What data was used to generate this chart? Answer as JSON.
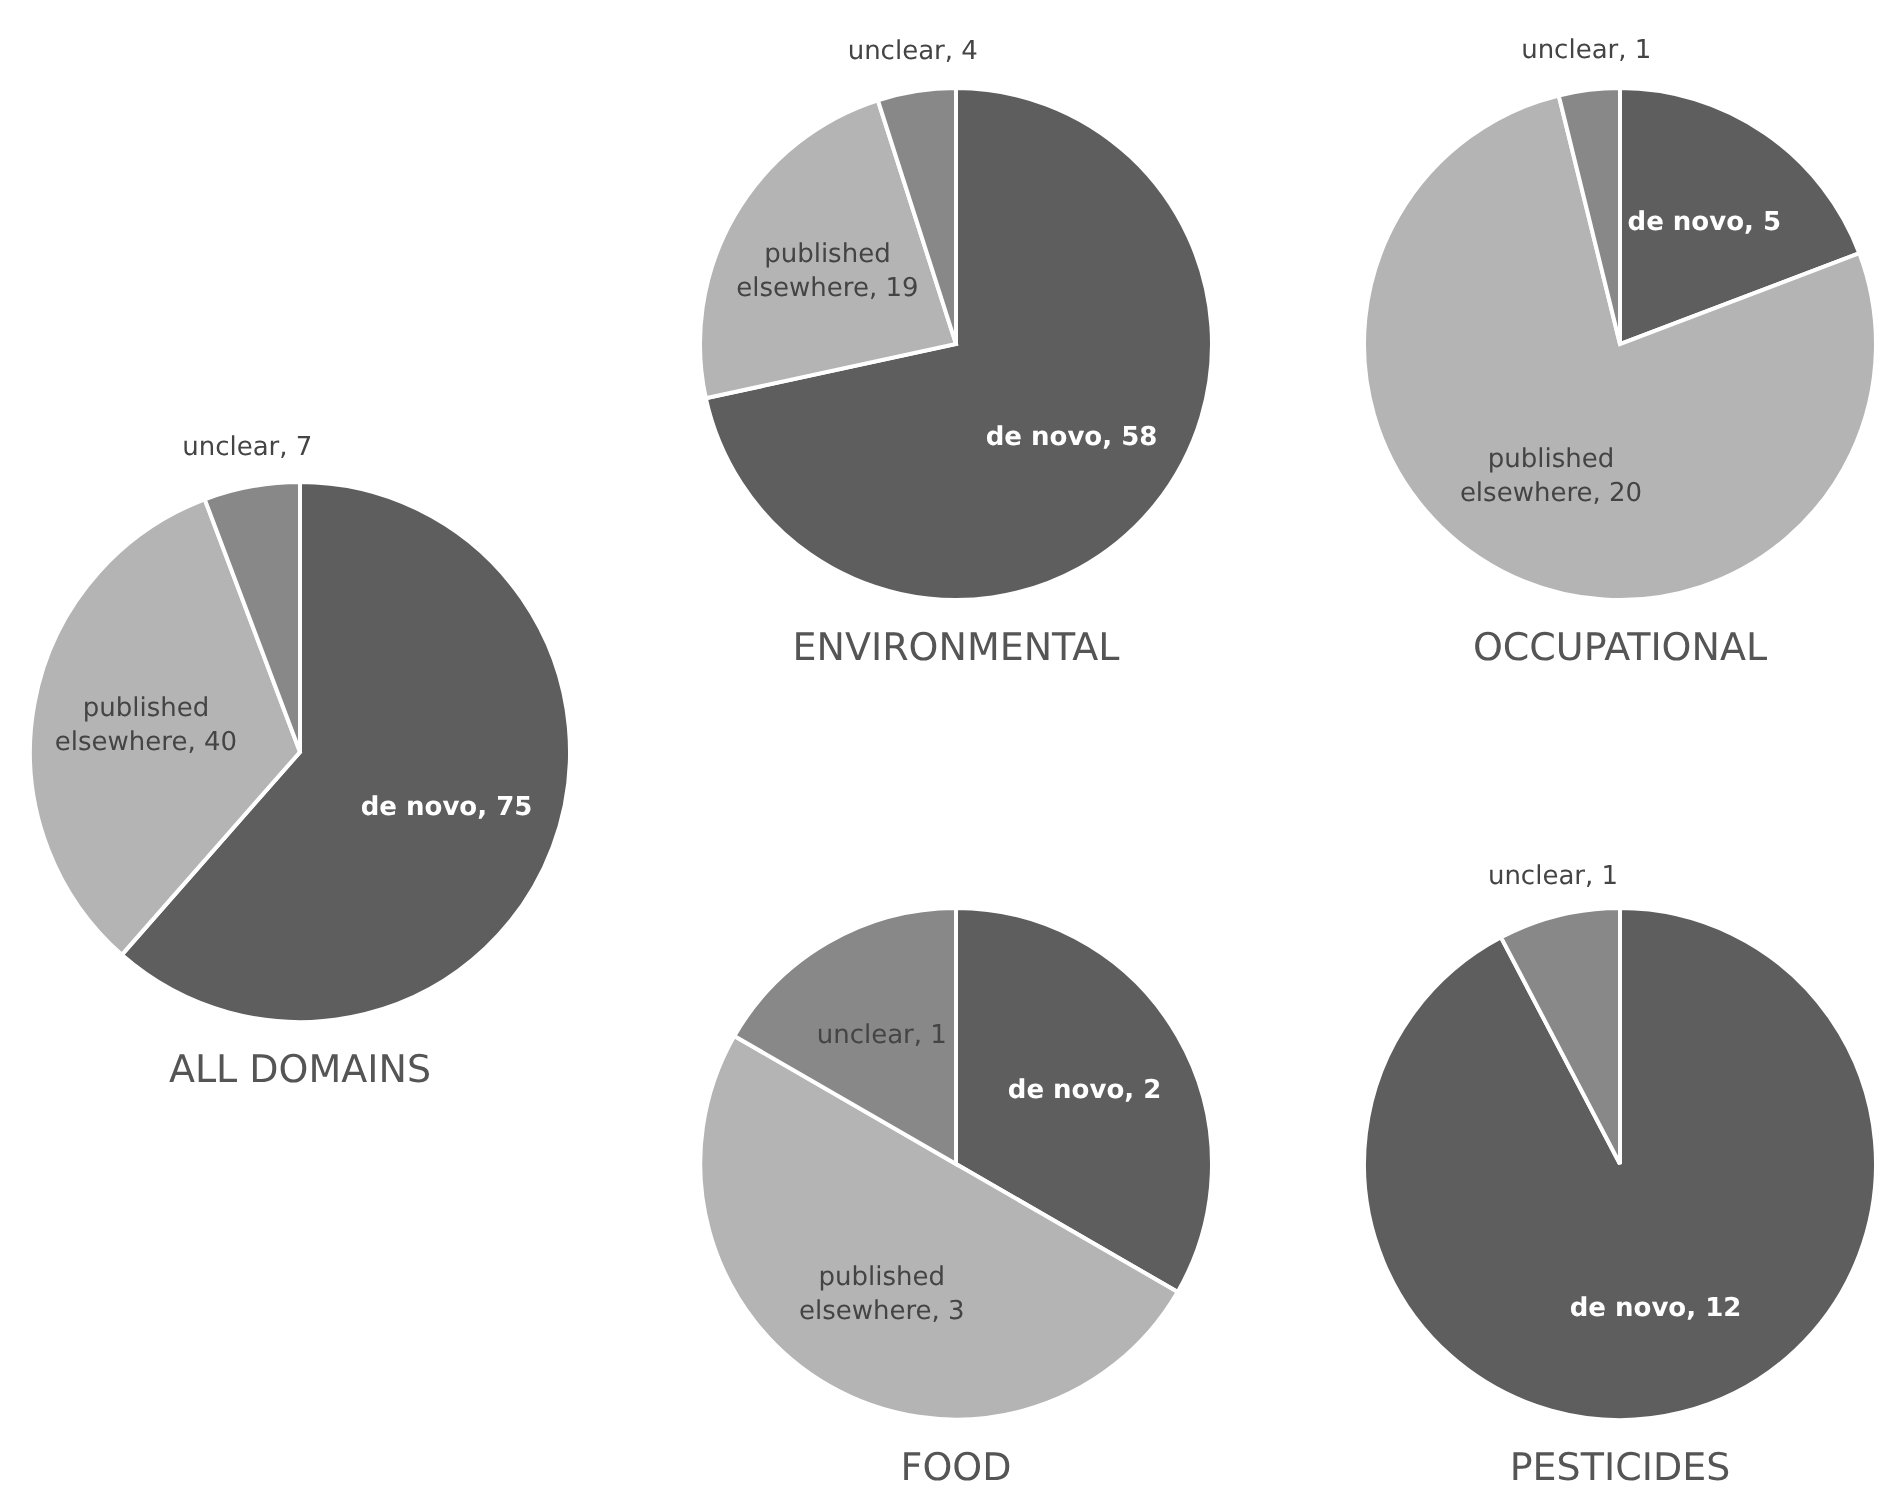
{
  "chart_data": [
    {
      "type": "pie",
      "title": "ALL DOMAINS",
      "categories": [
        "de novo",
        "published elsewhere",
        "unclear"
      ],
      "values": [
        75,
        40,
        7
      ],
      "colors": [
        "#5e5e5e",
        "#b4b4b4",
        "#888888"
      ],
      "value_labels": [
        ", 75",
        ", 40",
        ", 7"
      ]
    },
    {
      "type": "pie",
      "title": "ENVIRONMENTAL",
      "categories": [
        "de novo",
        "published elsewhere",
        "unclear"
      ],
      "values": [
        58,
        19,
        4
      ],
      "colors": [
        "#5e5e5e",
        "#b4b4b4",
        "#888888"
      ],
      "value_labels": [
        ", 58",
        ", 19",
        ", 4"
      ]
    },
    {
      "type": "pie",
      "title": "OCCUPATIONAL",
      "categories": [
        "de novo",
        "published elsewhere",
        "unclear"
      ],
      "values": [
        5,
        20,
        1
      ],
      "colors": [
        "#5e5e5e",
        "#b4b4b4",
        "#888888"
      ],
      "value_labels": [
        ", 5",
        ", 20",
        ", 1"
      ]
    },
    {
      "type": "pie",
      "title": "FOOD",
      "categories": [
        "de novo",
        "published elsewhere",
        "unclear"
      ],
      "values": [
        2,
        3,
        1
      ],
      "colors": [
        "#5e5e5e",
        "#b4b4b4",
        "#888888"
      ],
      "value_labels": [
        ", 2",
        ", 3",
        ", 1"
      ]
    },
    {
      "type": "pie",
      "title": "PESTICIDES",
      "categories": [
        "de novo",
        "unclear"
      ],
      "values": [
        12,
        1
      ],
      "colors": [
        "#5e5e5e",
        "#888888"
      ],
      "value_labels": [
        ", 12",
        ", 1"
      ]
    }
  ]
}
